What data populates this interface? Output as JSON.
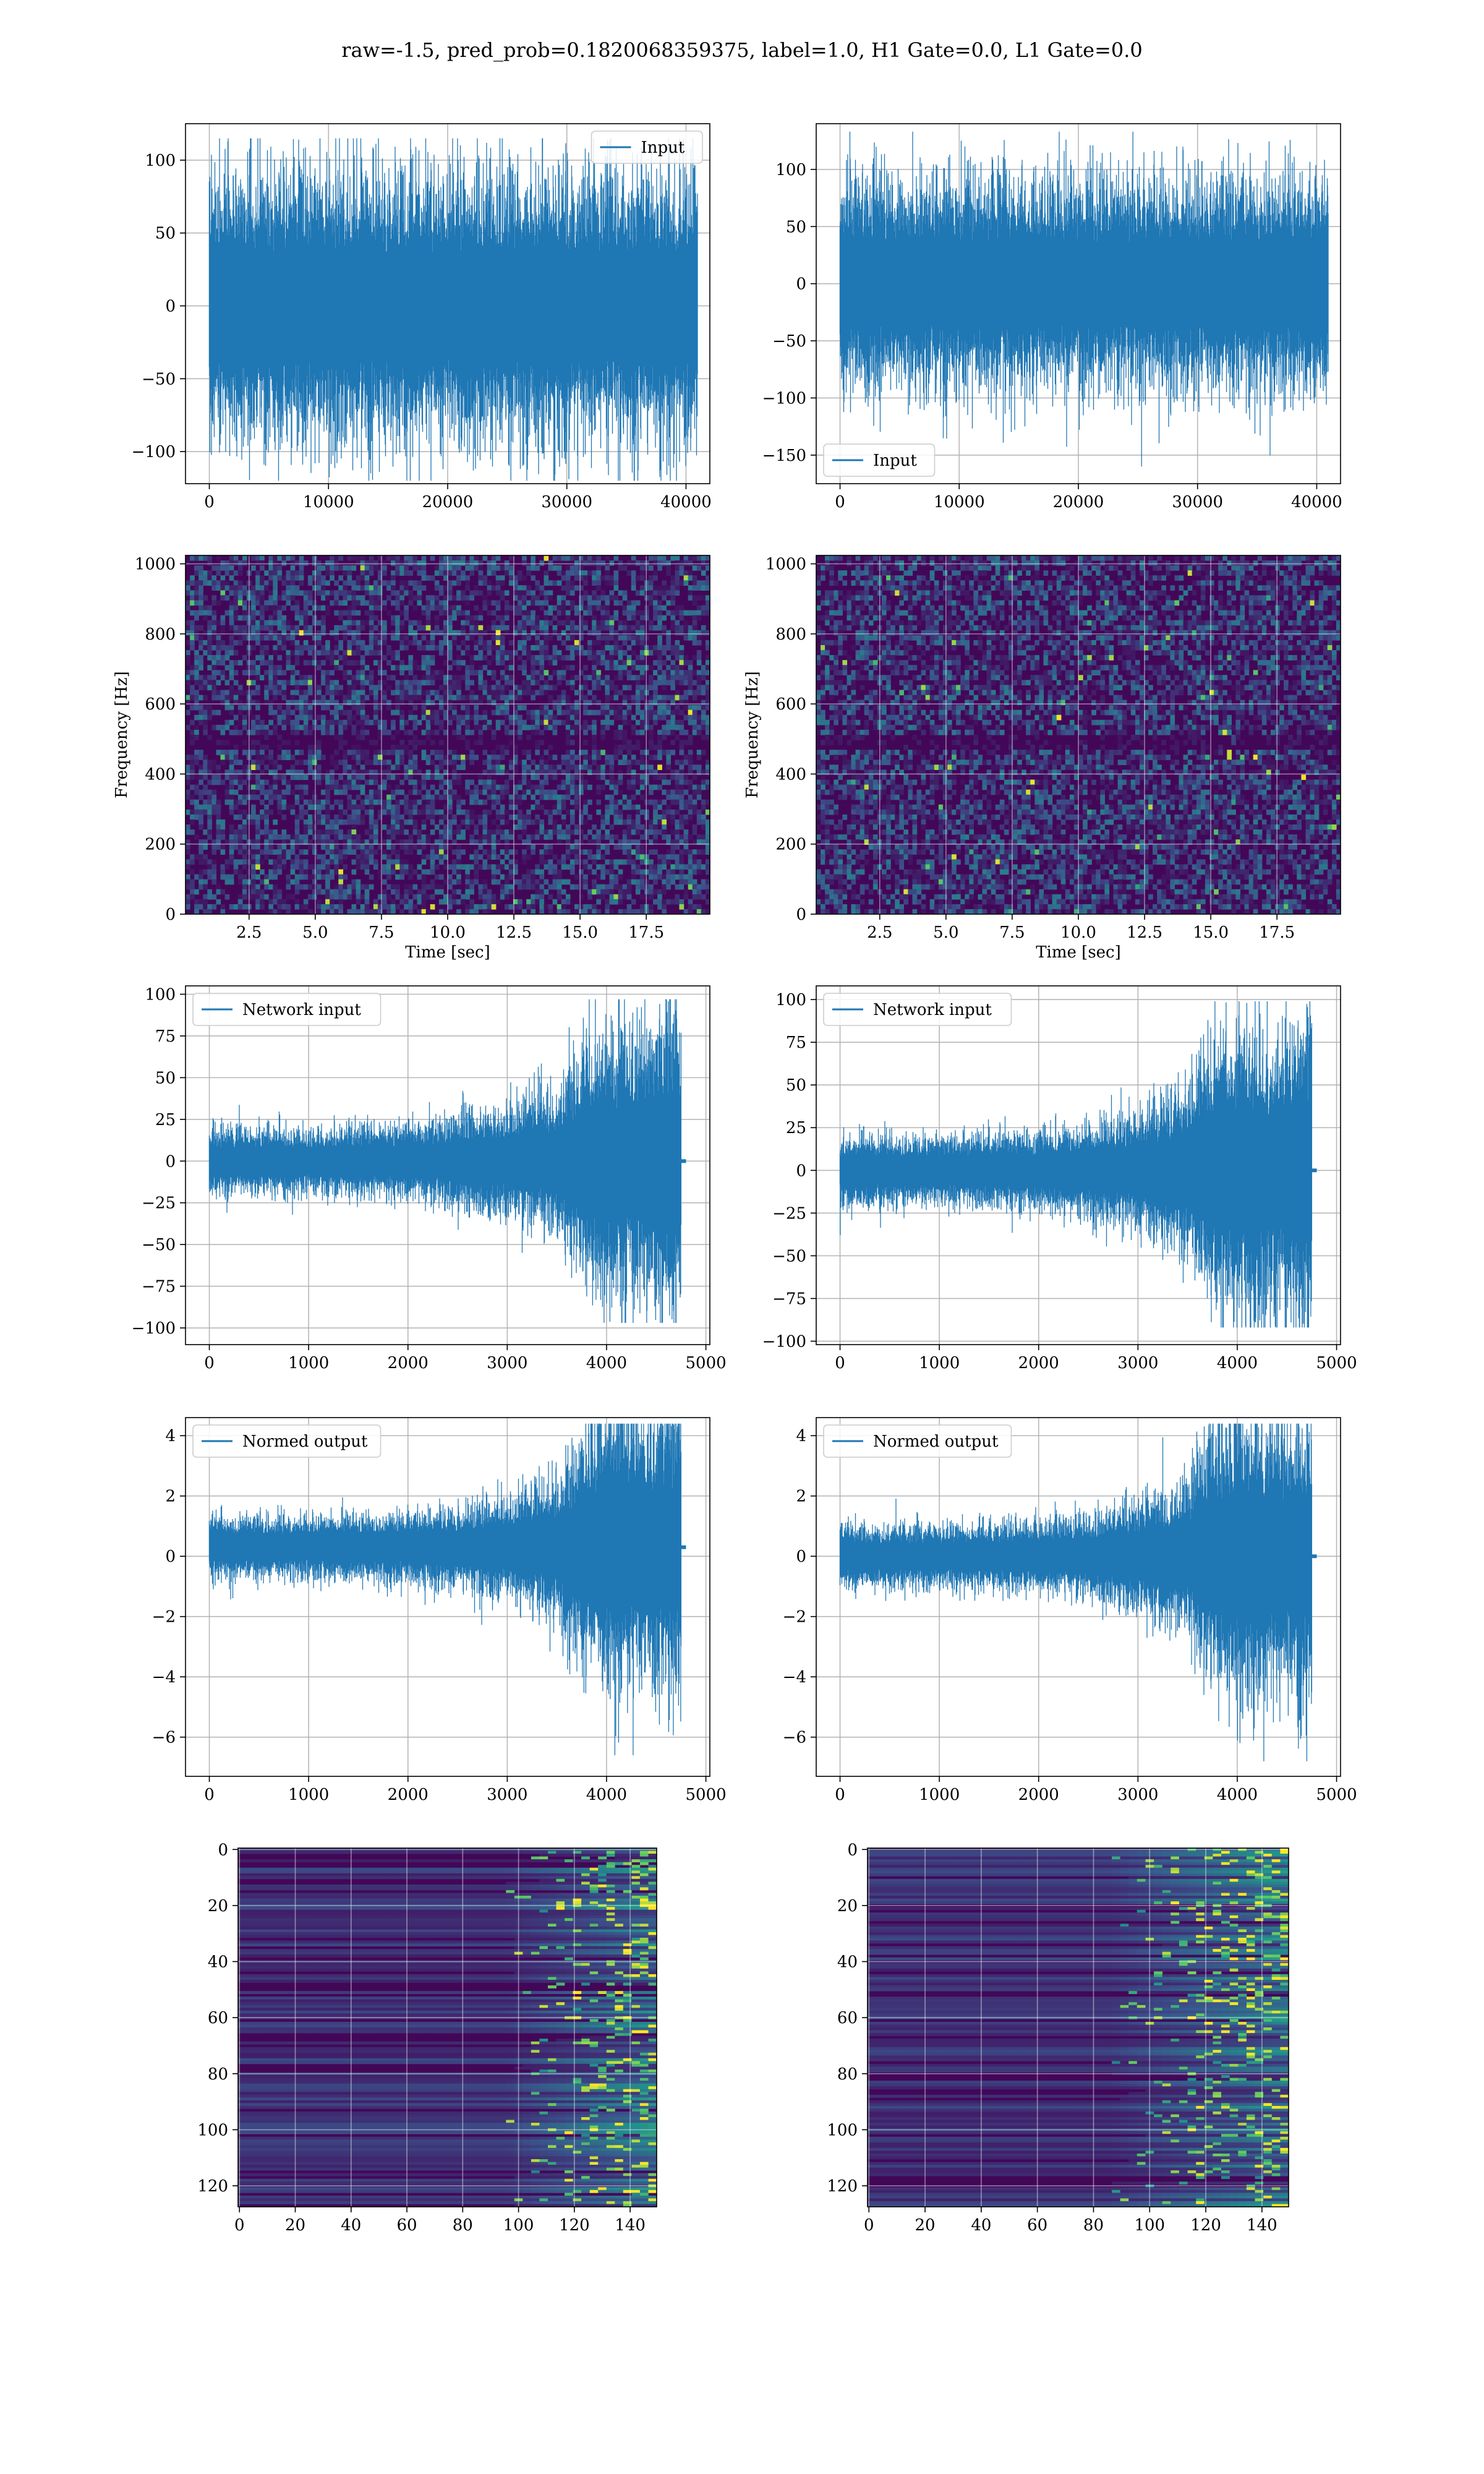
{
  "figure": {
    "suptitle": "raw=-1.5, pred_prob=0.1820068359375, label=1.0, H1 Gate=0.0, L1 Gate=0.0",
    "line_color": "#1f77b4",
    "grid_color": "#b0b0b0",
    "colormap": "viridis"
  },
  "chart_data": [
    {
      "id": "input-left",
      "type": "line",
      "legend": [
        "Input"
      ],
      "legend_loc": "upper right",
      "xlim": [
        -2000,
        42000
      ],
      "ylim": [
        -122,
        125
      ],
      "xticks": [
        0,
        10000,
        20000,
        30000,
        40000
      ],
      "yticks": [
        -100,
        -50,
        0,
        50,
        100
      ],
      "series": [
        {
          "name": "Input",
          "n": 40960,
          "x_range": [
            0,
            40960
          ],
          "envelope_abs": 80,
          "peak_max": 115,
          "peak_min": -120
        }
      ]
    },
    {
      "id": "input-right",
      "type": "line",
      "legend": [
        "Input"
      ],
      "legend_loc": "lower left",
      "xlim": [
        -2000,
        42000
      ],
      "ylim": [
        -175,
        140
      ],
      "xticks": [
        0,
        10000,
        20000,
        30000,
        40000
      ],
      "yticks": [
        -150,
        -100,
        -50,
        0,
        50,
        100
      ],
      "series": [
        {
          "name": "Input",
          "n": 40960,
          "x_range": [
            0,
            40960
          ],
          "envelope_abs": 80,
          "peak_max": 133,
          "peak_min": -160
        }
      ]
    },
    {
      "id": "spectrogram-left",
      "type": "heatmap",
      "xlabel": "Time [sec]",
      "ylabel": "Frequency [Hz]",
      "xlim": [
        0.1,
        19.9
      ],
      "ylim": [
        0,
        1024
      ],
      "xticks": [
        2.5,
        5.0,
        7.5,
        10.0,
        12.5,
        15.0,
        17.5
      ],
      "yticks": [
        0,
        200,
        400,
        600,
        800,
        1000
      ],
      "dark_band_hz": 500
    },
    {
      "id": "spectrogram-right",
      "type": "heatmap",
      "xlabel": "Time [sec]",
      "ylabel": "Frequency [Hz]",
      "xlim": [
        0.1,
        19.9
      ],
      "ylim": [
        0,
        1024
      ],
      "xticks": [
        2.5,
        5.0,
        7.5,
        10.0,
        12.5,
        15.0,
        17.5
      ],
      "yticks": [
        0,
        200,
        400,
        600,
        800,
        1000
      ],
      "dark_band_hz": 500
    },
    {
      "id": "network-left",
      "type": "line",
      "legend": [
        "Network input"
      ],
      "legend_loc": "upper left",
      "xlim": [
        -240,
        5040
      ],
      "ylim": [
        -110,
        105
      ],
      "xticks": [
        0,
        1000,
        2000,
        3000,
        4000,
        5000
      ],
      "yticks": [
        -100,
        -75,
        -50,
        -25,
        0,
        25,
        50,
        75,
        100
      ],
      "series": [
        {
          "name": "Network input",
          "n": 4800,
          "x_range": [
            0,
            4800
          ],
          "cutoff": 4750,
          "amplitude_profile": [
            [
              0,
              18
            ],
            [
              1000,
              17
            ],
            [
              2000,
              19
            ],
            [
              2600,
              25
            ],
            [
              3000,
              28
            ],
            [
              3500,
              36
            ],
            [
              3700,
              55
            ],
            [
              4000,
              72
            ],
            [
              4300,
              66
            ],
            [
              4600,
              75
            ],
            [
              4750,
              80
            ]
          ],
          "peak_max": 97,
          "peak_min": -97
        }
      ]
    },
    {
      "id": "network-right",
      "type": "line",
      "legend": [
        "Network input"
      ],
      "legend_loc": "upper left",
      "xlim": [
        -240,
        5040
      ],
      "ylim": [
        -102,
        108
      ],
      "xticks": [
        0,
        1000,
        2000,
        3000,
        4000,
        5000
      ],
      "yticks": [
        -100,
        -75,
        -50,
        -25,
        0,
        25,
        50,
        75,
        100
      ],
      "series": [
        {
          "name": "Network input",
          "n": 4800,
          "x_range": [
            0,
            4800
          ],
          "cutoff": 4750,
          "amplitude_profile": [
            [
              0,
              18
            ],
            [
              1000,
              17
            ],
            [
              2000,
              19
            ],
            [
              2600,
              24
            ],
            [
              3000,
              30
            ],
            [
              3500,
              42
            ],
            [
              3700,
              62
            ],
            [
              4000,
              74
            ],
            [
              4300,
              70
            ],
            [
              4600,
              72
            ],
            [
              4750,
              76
            ]
          ],
          "peak_max": 99,
          "peak_min": -92
        }
      ]
    },
    {
      "id": "normed-left",
      "type": "line",
      "legend": [
        "Normed output"
      ],
      "legend_loc": "upper left",
      "xlim": [
        -240,
        5040
      ],
      "ylim": [
        -7.3,
        4.6
      ],
      "xticks": [
        0,
        1000,
        2000,
        3000,
        4000,
        5000
      ],
      "yticks": [
        -6,
        -4,
        -2,
        0,
        2,
        4
      ],
      "series": [
        {
          "name": "Normed output",
          "n": 4800,
          "x_range": [
            0,
            4800
          ],
          "cutoff": 4750,
          "center": 0.3,
          "amplitude_profile": [
            [
              0,
              0.9
            ],
            [
              1000,
              0.9
            ],
            [
              2000,
              1.0
            ],
            [
              2600,
              1.2
            ],
            [
              3000,
              1.5
            ],
            [
              3500,
              2.0
            ],
            [
              3700,
              3.0
            ],
            [
              4000,
              4.2
            ],
            [
              4300,
              3.8
            ],
            [
              4600,
              4.2
            ],
            [
              4750,
              4.4
            ]
          ],
          "peak_max": 4.4,
          "peak_min": -6.6
        }
      ]
    },
    {
      "id": "normed-right",
      "type": "line",
      "legend": [
        "Normed output"
      ],
      "legend_loc": "upper left",
      "xlim": [
        -240,
        5040
      ],
      "ylim": [
        -7.3,
        4.6
      ],
      "xticks": [
        0,
        1000,
        2000,
        3000,
        4000,
        5000
      ],
      "yticks": [
        -6,
        -4,
        -2,
        0,
        2,
        4
      ],
      "series": [
        {
          "name": "Normed output",
          "n": 4800,
          "x_range": [
            0,
            4800
          ],
          "cutoff": 4750,
          "center": 0.0,
          "amplitude_profile": [
            [
              0,
              0.9
            ],
            [
              1000,
              0.9
            ],
            [
              2000,
              1.0
            ],
            [
              2600,
              1.2
            ],
            [
              3000,
              1.6
            ],
            [
              3500,
              2.2
            ],
            [
              3700,
              3.3
            ],
            [
              4000,
              4.2
            ],
            [
              4300,
              4.0
            ],
            [
              4600,
              4.1
            ],
            [
              4750,
              4.3
            ]
          ],
          "peak_max": 4.4,
          "peak_min": -6.8
        }
      ]
    },
    {
      "id": "features-left",
      "type": "heatmap",
      "xlim": [
        -0.5,
        149.5
      ],
      "ylim": [
        127.5,
        -0.5
      ],
      "xticks": [
        0,
        20,
        40,
        60,
        80,
        100,
        120,
        140
      ],
      "yticks": [
        0,
        20,
        40,
        60,
        80,
        100,
        120
      ],
      "shape": [
        128,
        150
      ],
      "activation_onset_col": 95
    },
    {
      "id": "features-right",
      "type": "heatmap",
      "xlim": [
        -0.5,
        149.5
      ],
      "ylim": [
        127.5,
        -0.5
      ],
      "xticks": [
        0,
        20,
        40,
        60,
        80,
        100,
        120,
        140
      ],
      "yticks": [
        0,
        20,
        40,
        60,
        80,
        100,
        120
      ],
      "shape": [
        128,
        150
      ],
      "activation_onset_col": 85
    }
  ]
}
